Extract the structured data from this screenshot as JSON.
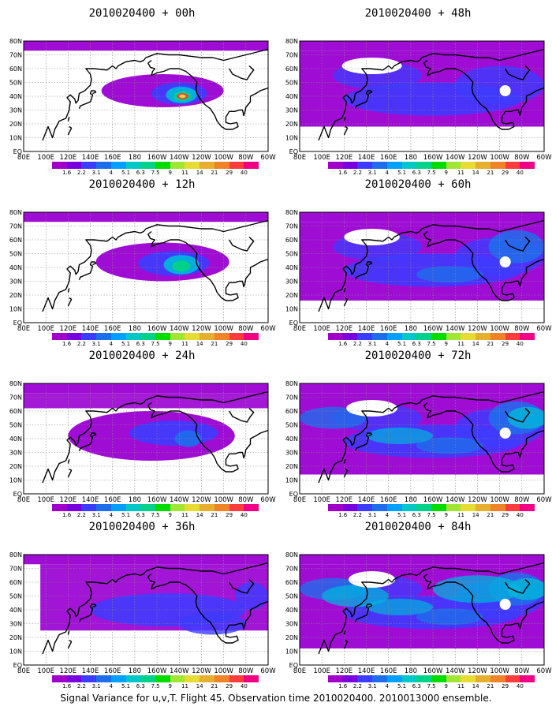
{
  "panels": [
    {
      "title": "2010020400 + 00h",
      "lead": "00h",
      "level": 0
    },
    {
      "title": "2010020400 + 48h",
      "lead": "48h",
      "level": 4
    },
    {
      "title": "2010020400 + 12h",
      "lead": "12h",
      "level": 1
    },
    {
      "title": "2010020400 + 60h",
      "lead": "60h",
      "level": 5
    },
    {
      "title": "2010020400 + 24h",
      "lead": "24h",
      "level": 2
    },
    {
      "title": "2010020400 + 72h",
      "lead": "72h",
      "level": 6
    },
    {
      "title": "2010020400 + 36h",
      "lead": "36h",
      "level": 3
    },
    {
      "title": "2010020400 + 84h",
      "lead": "84h",
      "level": 7
    }
  ],
  "axes": {
    "x_ticks": [
      "80E",
      "100E",
      "120E",
      "140E",
      "160E",
      "180",
      "160W",
      "140W",
      "120W",
      "100W",
      "80W",
      "60W"
    ],
    "y_ticks": [
      "EQ",
      "10N",
      "20N",
      "30N",
      "40N",
      "50N",
      "60N",
      "70N",
      "80N"
    ]
  },
  "colorbar": {
    "values": [
      "1.6",
      "2.2",
      "3.1",
      "4",
      "5.1",
      "6.3",
      "7.5",
      "9",
      "11",
      "14",
      "21",
      "29",
      "40"
    ],
    "colors": [
      "#a000c8",
      "#7800dc",
      "#3c3cff",
      "#1e6eeb",
      "#00a0ff",
      "#00c8c8",
      "#00d28c",
      "#00dc00",
      "#a0e632",
      "#e6dc32",
      "#e6af2d",
      "#f08228",
      "#fa3c3c",
      "#f00082"
    ]
  },
  "footer": "Signal Variance for u,v,T. Flight 45. Observation time 2010020400. 2010013000 ensemble."
}
